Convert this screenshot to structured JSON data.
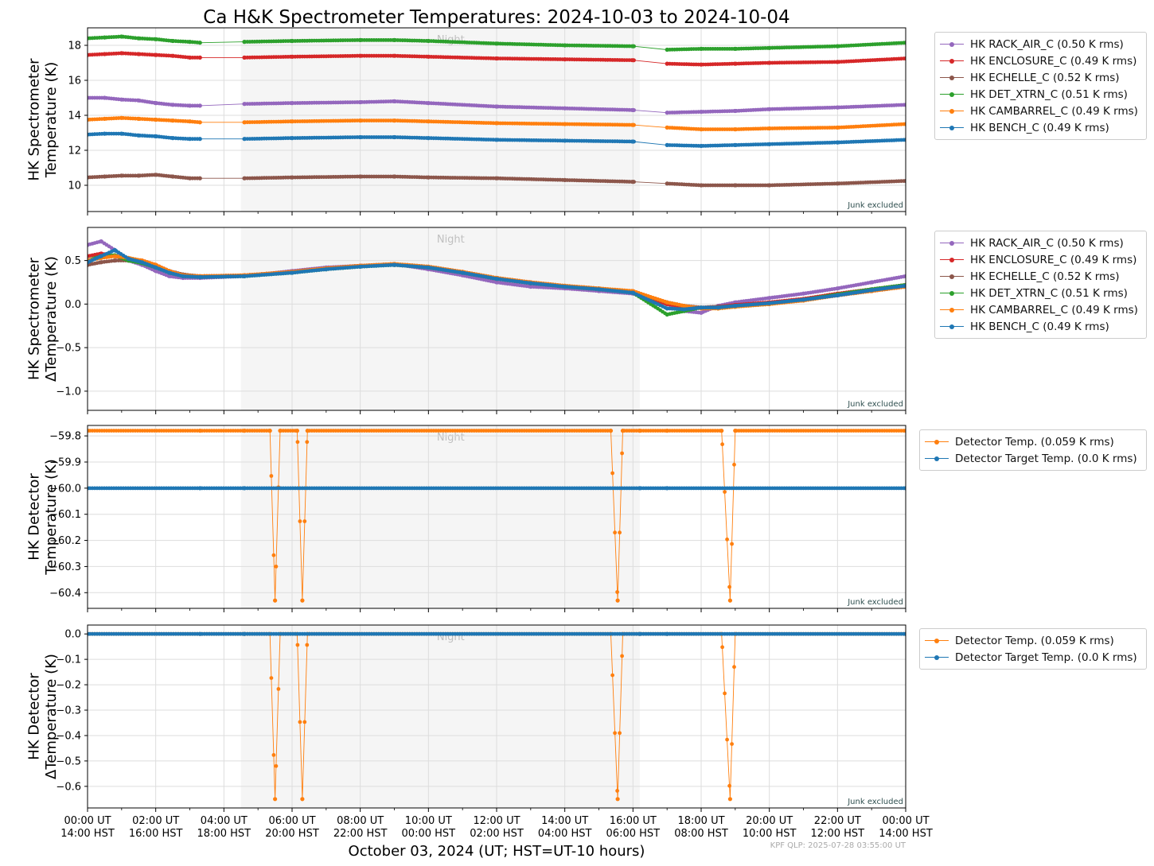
{
  "figure": {
    "title": "Ca H&K Spectrometer Temperatures: 2024-10-03 to 2024-10-04",
    "xlabel": "October 03, 2024 (UT; HST=UT-10 hours)",
    "footer": "KPF QLP: 2025-07-28 03:55:00 UT",
    "night_label": "Night",
    "junk_label": "Junk excluded"
  },
  "chart_data": [
    {
      "type": "line",
      "ylabel": [
        "HK Spectrometer",
        "Temperature (K)"
      ],
      "ylim": [
        8.5,
        19.0
      ],
      "yticks": [
        10,
        12,
        14,
        16,
        18
      ],
      "xlim": [
        0,
        24
      ],
      "x_unit": "hours UT on 2024-10-03",
      "night_span": [
        4.5,
        16.2
      ],
      "gaps": [
        [
          3.3,
          4.6
        ],
        [
          16.1,
          17.0
        ]
      ],
      "grid": true,
      "legend_placement": "outside-right",
      "series": [
        {
          "name": "HK RACK_AIR_C (0.50 K rms)",
          "color": "#9467bd",
          "x": [
            0,
            0.5,
            1,
            1.5,
            2,
            2.5,
            3,
            3.3,
            4.6,
            6,
            8,
            9,
            10,
            12,
            14,
            16,
            17,
            18,
            19,
            20,
            22,
            24
          ],
          "y": [
            15.0,
            15.0,
            14.9,
            14.85,
            14.7,
            14.6,
            14.55,
            14.55,
            14.65,
            14.7,
            14.75,
            14.8,
            14.7,
            14.5,
            14.4,
            14.3,
            14.15,
            14.2,
            14.25,
            14.35,
            14.45,
            14.6
          ]
        },
        {
          "name": "HK ENCLOSURE_C (0.49 K rms)",
          "color": "#d62728",
          "x": [
            0,
            0.5,
            1,
            1.5,
            2,
            2.5,
            3,
            3.3,
            4.6,
            6,
            8,
            9,
            10,
            12,
            14,
            16,
            17,
            18,
            19,
            20,
            22,
            24
          ],
          "y": [
            17.45,
            17.5,
            17.55,
            17.5,
            17.45,
            17.4,
            17.3,
            17.3,
            17.3,
            17.35,
            17.4,
            17.4,
            17.35,
            17.25,
            17.2,
            17.15,
            16.95,
            16.9,
            16.95,
            17.0,
            17.05,
            17.25
          ]
        },
        {
          "name": "HK ECHELLE_C (0.52 K rms)",
          "color": "#8c564b",
          "x": [
            0,
            0.5,
            1,
            1.5,
            2,
            2.5,
            3,
            3.3,
            4.6,
            6,
            8,
            9,
            10,
            12,
            14,
            16,
            17,
            18,
            19,
            20,
            22,
            24
          ],
          "y": [
            10.45,
            10.5,
            10.55,
            10.55,
            10.6,
            10.5,
            10.4,
            10.4,
            10.4,
            10.45,
            10.5,
            10.5,
            10.45,
            10.4,
            10.3,
            10.2,
            10.1,
            10.0,
            10.0,
            10.0,
            10.1,
            10.25
          ]
        },
        {
          "name": "HK DET_XTRN_C (0.51 K rms)",
          "color": "#2ca02c",
          "x": [
            0,
            0.5,
            1,
            1.5,
            2,
            2.5,
            3,
            3.3,
            4.6,
            6,
            8,
            9,
            10,
            12,
            14,
            16,
            17,
            18,
            19,
            20,
            22,
            24
          ],
          "y": [
            18.4,
            18.45,
            18.5,
            18.4,
            18.35,
            18.25,
            18.2,
            18.15,
            18.2,
            18.25,
            18.3,
            18.3,
            18.25,
            18.1,
            18.0,
            17.95,
            17.75,
            17.8,
            17.8,
            17.85,
            17.95,
            18.15
          ]
        },
        {
          "name": "HK CAMBARREL_C (0.49 K rms)",
          "color": "#ff7f0e",
          "x": [
            0,
            0.5,
            1,
            1.5,
            2,
            2.5,
            3,
            3.3,
            4.6,
            6,
            8,
            9,
            10,
            12,
            14,
            16,
            17,
            18,
            19,
            20,
            22,
            24
          ],
          "y": [
            13.75,
            13.8,
            13.85,
            13.8,
            13.75,
            13.7,
            13.65,
            13.6,
            13.6,
            13.65,
            13.7,
            13.7,
            13.65,
            13.55,
            13.5,
            13.45,
            13.3,
            13.2,
            13.2,
            13.25,
            13.3,
            13.5
          ]
        },
        {
          "name": "HK BENCH_C (0.49 K rms)",
          "color": "#1f77b4",
          "x": [
            0,
            0.5,
            1,
            1.5,
            2,
            2.5,
            3,
            3.3,
            4.6,
            6,
            8,
            9,
            10,
            12,
            14,
            16,
            17,
            18,
            19,
            20,
            22,
            24
          ],
          "y": [
            12.9,
            12.95,
            12.95,
            12.85,
            12.8,
            12.7,
            12.65,
            12.65,
            12.65,
            12.7,
            12.75,
            12.75,
            12.7,
            12.6,
            12.55,
            12.5,
            12.3,
            12.25,
            12.3,
            12.35,
            12.45,
            12.6
          ]
        }
      ]
    },
    {
      "type": "line",
      "ylabel": [
        "HK Spectrometer",
        "ΔTemperature (K)"
      ],
      "ylim": [
        -1.22,
        0.88
      ],
      "yticks": [
        0.5,
        0.0,
        -0.5,
        -1.0
      ],
      "ytick_labels": [
        "0.5",
        "0.0",
        "−0.5",
        "−1.0"
      ],
      "xlim": [
        0,
        24
      ],
      "night_span": [
        4.5,
        16.2
      ],
      "grid": true,
      "legend_placement": "outside-right",
      "series": [
        {
          "name": "HK RACK_AIR_C (0.50 K rms)",
          "color": "#9467bd",
          "x": [
            0,
            0.4,
            0.8,
            1.2,
            1.6,
            2.0,
            2.4,
            2.8,
            3.3,
            4.6,
            6,
            7,
            8,
            9,
            10,
            11,
            12,
            13,
            14,
            15,
            16,
            17,
            17.5,
            18,
            18.5,
            19,
            20,
            21,
            22,
            23,
            24
          ],
          "y": [
            0.68,
            0.72,
            0.62,
            0.5,
            0.45,
            0.38,
            0.32,
            0.3,
            0.3,
            0.32,
            0.38,
            0.42,
            0.44,
            0.46,
            0.4,
            0.33,
            0.25,
            0.2,
            0.18,
            0.15,
            0.12,
            0.0,
            -0.08,
            -0.1,
            -0.02,
            0.02,
            0.07,
            0.12,
            0.18,
            0.25,
            0.32
          ]
        },
        {
          "name": "HK ENCLOSURE_C (0.49 K rms)",
          "color": "#d62728",
          "x": [
            0,
            0.4,
            0.8,
            1.2,
            1.6,
            2.0,
            2.4,
            2.8,
            3.3,
            4.6,
            6,
            7,
            8,
            9,
            10,
            11,
            12,
            13,
            14,
            15,
            16,
            17,
            17.5,
            18,
            18.5,
            19,
            20,
            21,
            22,
            23,
            24
          ],
          "y": [
            0.55,
            0.58,
            0.55,
            0.52,
            0.5,
            0.45,
            0.38,
            0.33,
            0.32,
            0.33,
            0.37,
            0.41,
            0.44,
            0.45,
            0.42,
            0.36,
            0.29,
            0.24,
            0.2,
            0.17,
            0.14,
            0.0,
            -0.03,
            -0.04,
            -0.03,
            -0.01,
            0.02,
            0.06,
            0.12,
            0.17,
            0.22
          ]
        },
        {
          "name": "HK ECHELLE_C (0.52 K rms)",
          "color": "#8c564b",
          "x": [
            0,
            0.4,
            0.8,
            1.2,
            1.6,
            2.0,
            2.4,
            2.8,
            3.3,
            4.6,
            6,
            7,
            8,
            9,
            10,
            11,
            12,
            13,
            14,
            15,
            16,
            17,
            17.5,
            18,
            18.5,
            19,
            20,
            21,
            22,
            23,
            24
          ],
          "y": [
            0.45,
            0.48,
            0.5,
            0.5,
            0.48,
            0.44,
            0.38,
            0.34,
            0.32,
            0.33,
            0.37,
            0.41,
            0.44,
            0.46,
            0.43,
            0.37,
            0.3,
            0.25,
            0.21,
            0.18,
            0.14,
            0.02,
            -0.02,
            -0.04,
            -0.03,
            -0.02,
            0.01,
            0.05,
            0.1,
            0.15,
            0.2
          ]
        },
        {
          "name": "HK DET_XTRN_C (0.51 K rms)",
          "color": "#2ca02c",
          "x": [
            0,
            0.4,
            0.8,
            1.2,
            1.6,
            2.0,
            2.4,
            2.8,
            3.3,
            4.6,
            6,
            7,
            8,
            9,
            10,
            11,
            12,
            13,
            14,
            15,
            16,
            17,
            17.5,
            18,
            18.5,
            19,
            20,
            21,
            22,
            23,
            24
          ],
          "y": [
            0.5,
            0.55,
            0.56,
            0.5,
            0.47,
            0.42,
            0.36,
            0.32,
            0.31,
            0.32,
            0.36,
            0.4,
            0.43,
            0.45,
            0.42,
            0.36,
            0.29,
            0.24,
            0.2,
            0.17,
            0.13,
            -0.12,
            -0.08,
            -0.04,
            -0.05,
            -0.03,
            0.0,
            0.05,
            0.11,
            0.17,
            0.22
          ]
        },
        {
          "name": "HK CAMBARREL_C (0.49 K rms)",
          "color": "#ff7f0e",
          "x": [
            0,
            0.4,
            0.8,
            1.2,
            1.6,
            2.0,
            2.4,
            2.8,
            3.3,
            4.6,
            6,
            7,
            8,
            9,
            10,
            11,
            12,
            13,
            14,
            15,
            16,
            17,
            17.5,
            18,
            18.5,
            19,
            20,
            21,
            22,
            23,
            24
          ],
          "y": [
            0.5,
            0.53,
            0.55,
            0.53,
            0.5,
            0.45,
            0.38,
            0.33,
            0.32,
            0.33,
            0.37,
            0.41,
            0.44,
            0.46,
            0.43,
            0.37,
            0.3,
            0.25,
            0.21,
            0.18,
            0.15,
            0.02,
            -0.02,
            -0.05,
            -0.05,
            -0.03,
            0.0,
            0.04,
            0.1,
            0.15,
            0.2
          ]
        },
        {
          "name": "HK BENCH_C (0.49 K rms)",
          "color": "#1f77b4",
          "x": [
            0,
            0.4,
            0.8,
            1.2,
            1.6,
            2.0,
            2.4,
            2.8,
            3.3,
            4.6,
            6,
            7,
            8,
            9,
            10,
            11,
            12,
            13,
            14,
            15,
            16,
            17,
            17.5,
            18,
            18.5,
            19,
            20,
            21,
            22,
            23,
            24
          ],
          "y": [
            0.48,
            0.55,
            0.62,
            0.52,
            0.48,
            0.42,
            0.36,
            0.32,
            0.31,
            0.32,
            0.36,
            0.4,
            0.43,
            0.45,
            0.42,
            0.36,
            0.29,
            0.24,
            0.2,
            0.17,
            0.13,
            -0.05,
            -0.06,
            -0.04,
            -0.04,
            -0.02,
            0.01,
            0.05,
            0.1,
            0.16,
            0.21
          ]
        }
      ]
    },
    {
      "type": "line",
      "ylabel": [
        "HK Detector",
        "Temperature (K)"
      ],
      "ylim": [
        -60.46,
        -59.76
      ],
      "yticks": [
        -59.8,
        -59.9,
        -60.0,
        -60.1,
        -60.2,
        -60.3,
        -60.4
      ],
      "ytick_labels": [
        "−59.8",
        "−59.9",
        "−60.0",
        "−60.1",
        "−60.2",
        "−60.3",
        "−60.4"
      ],
      "xlim": [
        0,
        24
      ],
      "night_span": [
        4.5,
        16.2
      ],
      "grid": true,
      "legend_placement": "outside-right",
      "series": [
        {
          "name": "Detector Temp. (0.059 K rms)",
          "color": "#ff7f0e",
          "x": [
            0,
            3.3,
            4.6,
            5.35,
            5.5,
            5.65,
            6.15,
            6.3,
            6.45,
            15.35,
            15.55,
            15.7,
            16.2,
            17.0,
            18.6,
            18.85,
            19.0,
            24
          ],
          "y": [
            -59.78,
            -59.78,
            -59.78,
            -59.78,
            -60.43,
            -59.78,
            -59.78,
            -60.43,
            -59.78,
            -59.78,
            -60.43,
            -59.78,
            -59.78,
            -59.78,
            -59.78,
            -60.43,
            -59.78,
            -59.78
          ]
        },
        {
          "name": "Detector Target Temp. (0.0 K rms)",
          "color": "#1f77b4",
          "x": [
            0,
            3.3,
            4.6,
            16.2,
            17.0,
            24
          ],
          "y": [
            -60.0,
            -60.0,
            -60.0,
            -60.0,
            -60.0,
            -60.0
          ]
        }
      ]
    },
    {
      "type": "line",
      "ylabel": [
        "HK Detector",
        "ΔTemperature (K)"
      ],
      "ylim": [
        -0.685,
        0.035
      ],
      "yticks": [
        0.0,
        -0.1,
        -0.2,
        -0.3,
        -0.4,
        -0.5,
        -0.6
      ],
      "ytick_labels": [
        "0.0",
        "−0.1",
        "−0.2",
        "−0.3",
        "−0.4",
        "−0.5",
        "−0.6"
      ],
      "xlim": [
        0,
        24
      ],
      "night_span": [
        4.5,
        16.2
      ],
      "grid": true,
      "legend_placement": "outside-right",
      "series": [
        {
          "name": "Detector Temp. (0.059 K rms)",
          "color": "#ff7f0e",
          "x": [
            0,
            3.3,
            4.6,
            5.35,
            5.5,
            5.65,
            6.15,
            6.3,
            6.45,
            15.35,
            15.55,
            15.7,
            16.2,
            17.0,
            18.6,
            18.85,
            19.0,
            24
          ],
          "y": [
            0.0,
            0.0,
            0.0,
            0.0,
            -0.65,
            0.0,
            0.0,
            -0.65,
            0.0,
            0.0,
            -0.65,
            0.0,
            0.0,
            0.0,
            0.0,
            -0.65,
            0.0,
            0.0
          ]
        },
        {
          "name": "Detector Target Temp. (0.0 K rms)",
          "color": "#1f77b4",
          "x": [
            0,
            3.3,
            4.6,
            16.2,
            17.0,
            24
          ],
          "y": [
            0.0,
            0.0,
            0.0,
            0.0,
            0.0,
            0.0
          ]
        }
      ]
    }
  ],
  "x_axis": {
    "ticks": [
      0,
      2,
      4,
      6,
      8,
      10,
      12,
      14,
      16,
      18,
      20,
      22,
      24
    ],
    "labels_ut": [
      "00:00 UT",
      "02:00 UT",
      "04:00 UT",
      "06:00 UT",
      "08:00 UT",
      "10:00 UT",
      "12:00 UT",
      "14:00 UT",
      "16:00 UT",
      "18:00 UT",
      "20:00 UT",
      "22:00 UT",
      "00:00 UT"
    ],
    "labels_hst": [
      "14:00 HST",
      "16:00 HST",
      "18:00 HST",
      "20:00 HST",
      "22:00 HST",
      "00:00 HST",
      "02:00 HST",
      "04:00 HST",
      "06:00 HST",
      "08:00 HST",
      "10:00 HST",
      "12:00 HST",
      "14:00 HST"
    ]
  }
}
